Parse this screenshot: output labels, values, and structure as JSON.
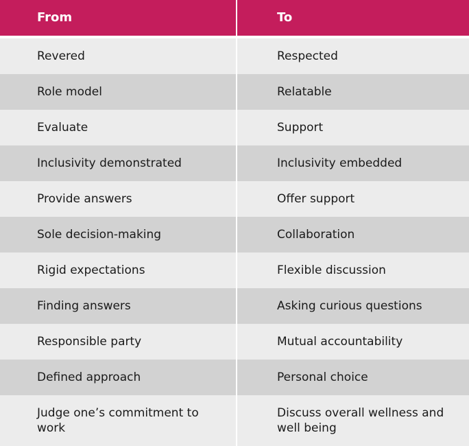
{
  "header": {
    "from_label": "From",
    "to_label": "To",
    "color": "#c41d5c"
  },
  "rows": [
    {
      "from": "Revered",
      "to": "Respected"
    },
    {
      "from": "Role model",
      "to": "Relatable"
    },
    {
      "from": "Evaluate",
      "to": "Support"
    },
    {
      "from": "Inclusivity demonstrated",
      "to": "Inclusivity embedded"
    },
    {
      "from": "Provide answers",
      "to": "Offer support"
    },
    {
      "from": "Sole decision-making",
      "to": "Collaboration"
    },
    {
      "from": "Rigid expectations",
      "to": "Flexible discussion"
    },
    {
      "from": "Finding answers",
      "to": "Asking curious questions"
    },
    {
      "from": "Responsible party",
      "to": "Mutual accountability"
    },
    {
      "from": "Defined approach",
      "to": "Personal choice"
    },
    {
      "from": "Judge one’s commitment to work",
      "to": "Discuss overall wellness and well being"
    }
  ]
}
